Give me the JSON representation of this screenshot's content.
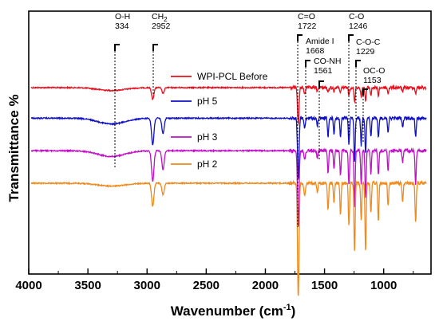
{
  "chart_data": {
    "type": "line",
    "xlabel": "Wavenumber (cm",
    "xlabel_sup": "-1",
    "xlabel_end": ")",
    "ylabel": "Transmittance %",
    "xlim": [
      4000,
      600
    ],
    "x_reversed": true,
    "xticks": [
      4000,
      3500,
      3000,
      2500,
      2000,
      1500,
      1000
    ],
    "legend_position": "center",
    "series": [
      {
        "name": "WPI-PCL Before",
        "color": "#e8101e",
        "offset": 0.0,
        "bands": [
          [
            2952,
            0.06
          ],
          [
            2865,
            0.03
          ],
          [
            1722,
            0.19
          ],
          [
            1668,
            0.03
          ],
          [
            1561,
            0.02
          ],
          [
            1470,
            0.03
          ],
          [
            1420,
            0.02
          ],
          [
            1365,
            0.03
          ],
          [
            1294,
            0.04
          ],
          [
            1246,
            0.08
          ],
          [
            1190,
            0.05
          ],
          [
            1153,
            0.07
          ],
          [
            1108,
            0.04
          ],
          [
            1045,
            0.04
          ],
          [
            963,
            0.03
          ],
          [
            840,
            0.02
          ],
          [
            730,
            0.03
          ]
        ]
      },
      {
        "name": "pH 5",
        "color": "#1010c8",
        "offset": 0.16,
        "bands": [
          [
            2952,
            0.14
          ],
          [
            2865,
            0.08
          ],
          [
            1722,
            0.32
          ],
          [
            1668,
            0.05
          ],
          [
            1561,
            0.04
          ],
          [
            1470,
            0.1
          ],
          [
            1420,
            0.08
          ],
          [
            1365,
            0.1
          ],
          [
            1294,
            0.14
          ],
          [
            1246,
            0.23
          ],
          [
            1190,
            0.14
          ],
          [
            1153,
            0.18
          ],
          [
            1108,
            0.1
          ],
          [
            1045,
            0.1
          ],
          [
            963,
            0.07
          ],
          [
            840,
            0.05
          ],
          [
            730,
            0.1
          ]
        ]
      },
      {
        "name": "pH 3",
        "color": "#c010c8",
        "offset": 0.33,
        "bands": [
          [
            2952,
            0.16
          ],
          [
            2865,
            0.1
          ],
          [
            1722,
            0.4
          ],
          [
            1668,
            0.05
          ],
          [
            1561,
            0.04
          ],
          [
            1470,
            0.12
          ],
          [
            1420,
            0.1
          ],
          [
            1365,
            0.13
          ],
          [
            1294,
            0.18
          ],
          [
            1246,
            0.3
          ],
          [
            1190,
            0.18
          ],
          [
            1153,
            0.25
          ],
          [
            1108,
            0.12
          ],
          [
            1045,
            0.13
          ],
          [
            963,
            0.1
          ],
          [
            840,
            0.06
          ],
          [
            730,
            0.18
          ]
        ]
      },
      {
        "name": "pH 2",
        "color": "#f08a1c",
        "offset": 0.5,
        "bands": [
          [
            2952,
            0.12
          ],
          [
            2865,
            0.06
          ],
          [
            1722,
            0.6
          ],
          [
            1668,
            0.07
          ],
          [
            1561,
            0.05
          ],
          [
            1470,
            0.14
          ],
          [
            1420,
            0.1
          ],
          [
            1365,
            0.17
          ],
          [
            1294,
            0.22
          ],
          [
            1246,
            0.36
          ],
          [
            1190,
            0.2
          ],
          [
            1153,
            0.36
          ],
          [
            1108,
            0.16
          ],
          [
            1045,
            0.2
          ],
          [
            963,
            0.12
          ],
          [
            840,
            0.1
          ],
          [
            730,
            0.21
          ]
        ]
      }
    ],
    "annotations": [
      {
        "wavenumber": 3280,
        "line1": "O-H",
        "line2": "334"
      },
      {
        "wavenumber": 2952,
        "line1": "CH",
        "sub": "2",
        "line2": "2952"
      },
      {
        "wavenumber": 1722,
        "line1": "C=O",
        "line2": "1722"
      },
      {
        "wavenumber": 1668,
        "line1": "Amide I",
        "line2": "1668"
      },
      {
        "wavenumber": 1561,
        "line1": "CO-NH",
        "line2": "1561"
      },
      {
        "wavenumber": 1294,
        "line1": "C-O",
        "line2": "1246"
      },
      {
        "wavenumber": 1246,
        "line1": "C-O-C",
        "line2": "1229"
      },
      {
        "wavenumber": 1153,
        "line1": "OC-O",
        "line2": "1153"
      }
    ]
  }
}
